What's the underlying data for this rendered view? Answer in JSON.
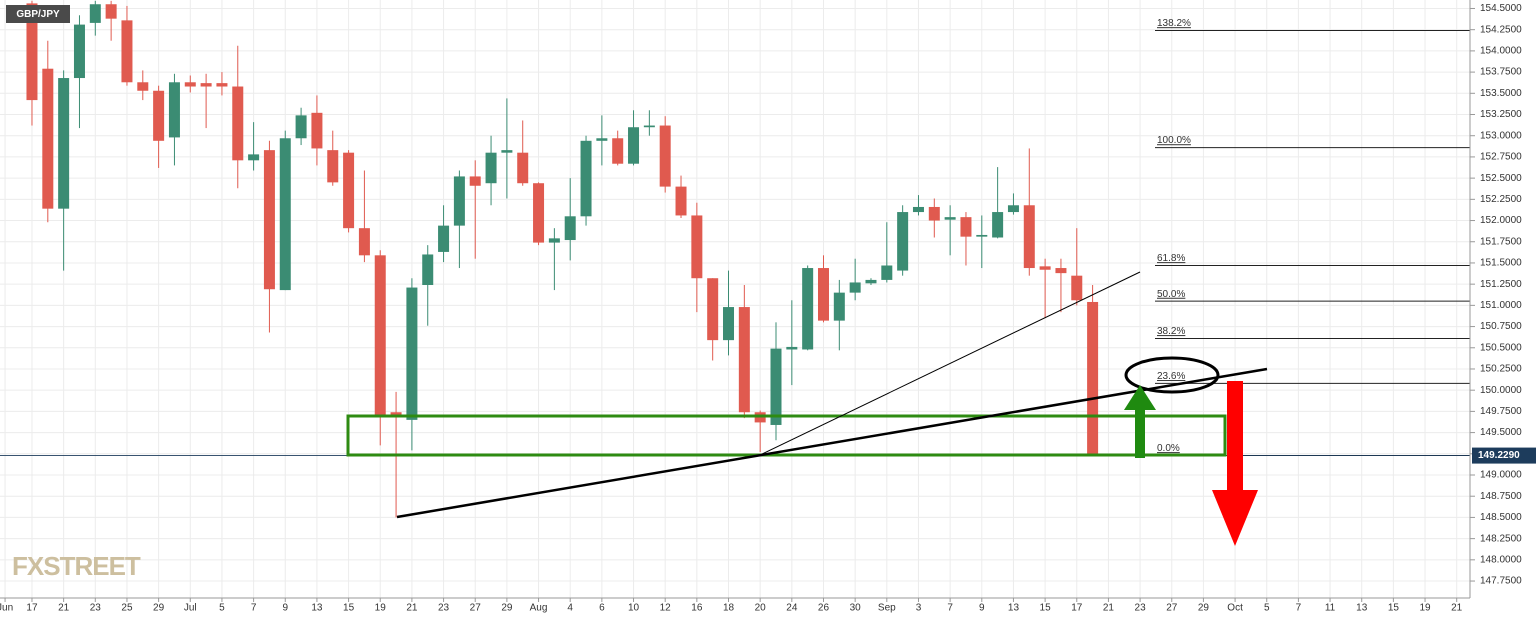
{
  "chart_data": {
    "type": "candlestick",
    "symbol": "GBP/JPY",
    "watermark": "FXSTREET",
    "up_color": "#3b8c73",
    "down_color": "#e05a4f",
    "grid": true,
    "x": [
      0,
      1,
      2,
      3,
      4,
      5,
      6,
      7,
      8,
      9,
      10,
      11,
      12,
      13,
      14,
      15,
      16,
      17,
      18,
      19,
      20,
      21,
      22,
      23,
      24,
      25,
      26,
      27,
      28,
      29,
      30,
      31,
      32,
      33,
      34,
      35,
      36,
      37,
      38,
      39,
      40,
      41,
      42,
      43,
      44,
      45,
      46,
      47,
      48,
      49,
      50,
      51,
      52,
      53,
      54,
      55,
      56,
      57,
      58,
      59,
      60,
      61,
      62,
      63,
      64,
      65,
      66,
      67
    ],
    "open": [
      154.56,
      153.79,
      152.14,
      153.68,
      154.33,
      154.55,
      154.36,
      153.63,
      153.53,
      152.98,
      153.63,
      153.62,
      153.62,
      153.58,
      152.71,
      152.83,
      151.18,
      152.97,
      153.27,
      152.83,
      152.8,
      151.91,
      151.59,
      149.74,
      149.65,
      151.24,
      151.63,
      151.94,
      152.52,
      152.44,
      152.8,
      152.8,
      152.44,
      151.74,
      151.77,
      152.05,
      152.94,
      152.97,
      152.67,
      153.1,
      153.12,
      152.4,
      152.06,
      151.32,
      150.59,
      150.98,
      149.74,
      149.59,
      150.48,
      150.48,
      151.44,
      150.82,
      151.15,
      151.26,
      151.3,
      151.41,
      152.1,
      152.16,
      152.01,
      152.04,
      151.81,
      151.8,
      152.1,
      152.18,
      151.46,
      151.44,
      151.35,
      151.04
    ],
    "high": [
      154.59,
      154.12,
      153.77,
      154.42,
      154.59,
      154.59,
      154.53,
      153.77,
      153.59,
      153.73,
      153.71,
      153.73,
      153.75,
      154.06,
      153.16,
      152.94,
      153.06,
      153.33,
      153.475,
      153.06,
      152.83,
      152.59,
      151.65,
      149.98,
      151.32,
      151.71,
      152.18,
      152.59,
      152.71,
      153.0,
      153.44,
      153.18,
      152.45,
      151.91,
      152.5,
      153.0,
      153.24,
      153.06,
      153.3,
      153.3,
      153.23,
      152.53,
      152.21,
      151.32,
      151.41,
      151.24,
      149.76,
      150.8,
      151.06,
      151.47,
      151.59,
      151.3,
      151.55,
      151.32,
      151.98,
      152.18,
      152.3,
      152.26,
      152.18,
      152.1,
      152.06,
      152.63,
      152.32,
      152.85,
      151.55,
      151.55,
      151.91,
      151.24
    ],
    "low": [
      153.12,
      151.98,
      151.41,
      153.09,
      154.18,
      154.12,
      153.59,
      153.42,
      152.62,
      152.65,
      153.51,
      153.09,
      153.475,
      152.38,
      152.59,
      150.68,
      151.18,
      152.89,
      152.65,
      152.41,
      151.86,
      151.51,
      149.35,
      148.5,
      149.29,
      150.76,
      151.51,
      151.44,
      151.55,
      152.18,
      152.26,
      152.41,
      151.71,
      151.18,
      151.53,
      151.94,
      152.65,
      152.65,
      152.65,
      153.0,
      152.33,
      152.03,
      150.92,
      150.35,
      150.41,
      149.67,
      149.27,
      149.41,
      150.06,
      150.47,
      150.8,
      150.47,
      151.06,
      151.24,
      151.27,
      151.35,
      152.06,
      151.8,
      151.59,
      151.47,
      151.44,
      151.79,
      152.07,
      151.35,
      150.85,
      150.92,
      151.0,
      149.23
    ],
    "close": [
      153.42,
      152.14,
      153.68,
      154.31,
      154.55,
      154.38,
      153.63,
      153.53,
      152.94,
      153.63,
      153.58,
      153.58,
      153.58,
      152.71,
      152.78,
      151.19,
      152.97,
      153.24,
      152.85,
      152.45,
      151.91,
      151.59,
      149.69,
      149.71,
      151.21,
      151.6,
      151.94,
      152.52,
      152.41,
      152.8,
      152.83,
      152.44,
      151.74,
      151.79,
      152.05,
      152.94,
      152.97,
      152.67,
      153.1,
      153.12,
      152.4,
      152.06,
      151.32,
      150.59,
      150.98,
      149.74,
      149.62,
      150.49,
      150.51,
      151.44,
      150.82,
      151.15,
      151.27,
      151.3,
      151.47,
      152.1,
      152.16,
      152.0,
      152.04,
      151.81,
      151.83,
      152.1,
      152.18,
      151.44,
      151.42,
      151.38,
      151.06,
      149.23
    ],
    "last_price": {
      "value": 149.229,
      "label": "149.2290"
    },
    "fib_levels": [
      {
        "label": "138.2%",
        "value": 154.24
      },
      {
        "label": "100.0%",
        "value": 152.86
      },
      {
        "label": "61.8%",
        "value": 151.47
      },
      {
        "label": "50.0%",
        "value": 151.05
      },
      {
        "label": "38.2%",
        "value": 150.61
      },
      {
        "label": "23.6%",
        "value": 150.08
      },
      {
        "label": "0.0%",
        "value": 149.23
      }
    ],
    "xlim": [
      -2.02,
      90.84
    ],
    "ylim": [
      147.55,
      154.6
    ],
    "xticks": [
      {
        "value": -1.7,
        "label": "Jun"
      },
      {
        "value": 0,
        "label": "17"
      },
      {
        "value": 2,
        "label": "21"
      },
      {
        "value": 4,
        "label": "23"
      },
      {
        "value": 6,
        "label": "25"
      },
      {
        "value": 8,
        "label": "29"
      },
      {
        "value": 10,
        "label": "Jul"
      },
      {
        "value": 12,
        "label": "5"
      },
      {
        "value": 14,
        "label": "7"
      },
      {
        "value": 16,
        "label": "9"
      },
      {
        "value": 18,
        "label": "13"
      },
      {
        "value": 20,
        "label": "15"
      },
      {
        "value": 22,
        "label": "19"
      },
      {
        "value": 24,
        "label": "21"
      },
      {
        "value": 26,
        "label": "23"
      },
      {
        "value": 28,
        "label": "27"
      },
      {
        "value": 30,
        "label": "29"
      },
      {
        "value": 32,
        "label": "Aug"
      },
      {
        "value": 34,
        "label": "4"
      },
      {
        "value": 36,
        "label": "6"
      },
      {
        "value": 38,
        "label": "10"
      },
      {
        "value": 40,
        "label": "12"
      },
      {
        "value": 42,
        "label": "16"
      },
      {
        "value": 44,
        "label": "18"
      },
      {
        "value": 46,
        "label": "20"
      },
      {
        "value": 48,
        "label": "24"
      },
      {
        "value": 50,
        "label": "26"
      },
      {
        "value": 52,
        "label": "30"
      },
      {
        "value": 54,
        "label": "Sep"
      },
      {
        "value": 56,
        "label": "3"
      },
      {
        "value": 58,
        "label": "7"
      },
      {
        "value": 60,
        "label": "9"
      },
      {
        "value": 62,
        "label": "13"
      },
      {
        "value": 64,
        "label": "15"
      },
      {
        "value": 66,
        "label": "17"
      },
      {
        "value": 68,
        "label": "21"
      },
      {
        "value": 70,
        "label": "23"
      },
      {
        "value": 72,
        "label": "27"
      },
      {
        "value": 74,
        "label": "29"
      },
      {
        "value": 76,
        "label": "Oct"
      },
      {
        "value": 78,
        "label": "5"
      },
      {
        "value": 80,
        "label": "7"
      },
      {
        "value": 82,
        "label": "11"
      },
      {
        "value": 84,
        "label": "13"
      },
      {
        "value": 86,
        "label": "15"
      },
      {
        "value": 88,
        "label": "19"
      },
      {
        "value": 90,
        "label": "21"
      }
    ],
    "yticks": [
      {
        "value": 147.75,
        "label": "147.7500"
      },
      {
        "value": 148,
        "label": "148.0000"
      },
      {
        "value": 148.25,
        "label": "148.2500"
      },
      {
        "value": 148.5,
        "label": "148.5000"
      },
      {
        "value": 148.75,
        "label": "148.7500"
      },
      {
        "value": 149,
        "label": "149.0000"
      },
      {
        "value": 149.25,
        "label": "149.2500"
      },
      {
        "value": 149.5,
        "label": "149.5000"
      },
      {
        "value": 149.75,
        "label": "149.7500"
      },
      {
        "value": 150,
        "label": "150.0000"
      },
      {
        "value": 150.25,
        "label": "150.2500"
      },
      {
        "value": 150.5,
        "label": "150.5000"
      },
      {
        "value": 150.75,
        "label": "150.7500"
      },
      {
        "value": 151,
        "label": "151.0000"
      },
      {
        "value": 151.25,
        "label": "151.2500"
      },
      {
        "value": 151.5,
        "label": "151.5000"
      },
      {
        "value": 151.75,
        "label": "151.7500"
      },
      {
        "value": 152,
        "label": "152.0000"
      },
      {
        "value": 152.25,
        "label": "152.2500"
      },
      {
        "value": 152.5,
        "label": "152.5000"
      },
      {
        "value": 152.75,
        "label": "152.7500"
      },
      {
        "value": 153,
        "label": "153.0000"
      },
      {
        "value": 153.25,
        "label": "153.2500"
      },
      {
        "value": 153.5,
        "label": "153.5000"
      },
      {
        "value": 153.75,
        "label": "153.7500"
      },
      {
        "value": 154,
        "label": "154.0000"
      },
      {
        "value": 154.25,
        "label": "154.2500"
      },
      {
        "value": 154.5,
        "label": "154.5000"
      }
    ]
  }
}
